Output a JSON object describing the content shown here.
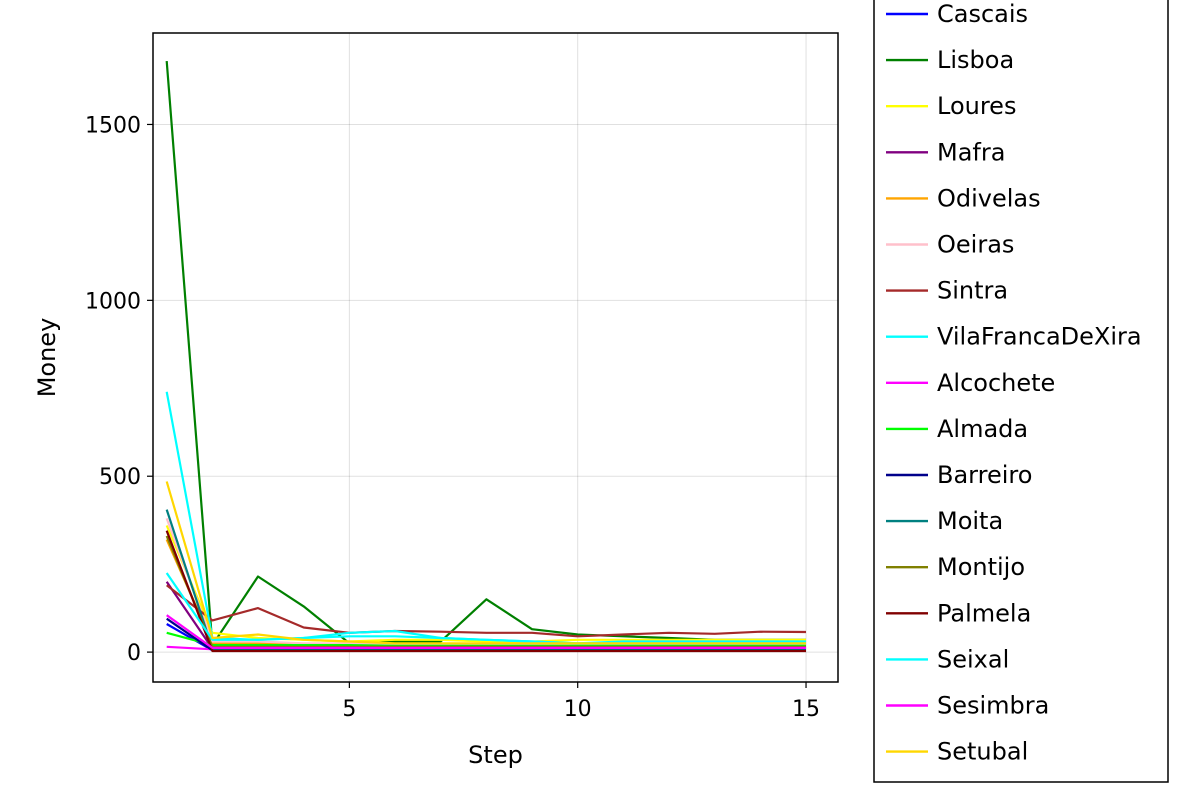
{
  "chart_data": {
    "type": "line",
    "xlabel": "Step",
    "ylabel": "Money",
    "xlim": [
      0.7,
      15.7
    ],
    "ylim": [
      -85,
      1760
    ],
    "xticks": [
      5,
      10,
      15
    ],
    "yticks": [
      0,
      500,
      1000,
      1500
    ],
    "grid": true,
    "legend_position": "right",
    "x": [
      1,
      2,
      3,
      4,
      5,
      6,
      7,
      8,
      9,
      10,
      11,
      12,
      13,
      14,
      15
    ],
    "series": [
      {
        "name": "Cascais",
        "color": "#0000ff",
        "values": [
          80,
          5,
          8,
          10,
          12,
          10,
          8,
          8,
          8,
          6,
          8,
          8,
          8,
          8,
          8
        ]
      },
      {
        "name": "Lisboa",
        "color": "#008000",
        "values": [
          1680,
          20,
          215,
          130,
          25,
          30,
          30,
          150,
          65,
          50,
          45,
          40,
          35,
          35,
          35
        ]
      },
      {
        "name": "Loures",
        "color": "#ffff00",
        "values": [
          360,
          55,
          40,
          35,
          30,
          35,
          35,
          30,
          30,
          35,
          35,
          35,
          35,
          35,
          35
        ]
      },
      {
        "name": "Mafra",
        "color": "#800080",
        "values": [
          200,
          10,
          10,
          12,
          15,
          12,
          10,
          10,
          10,
          8,
          8,
          8,
          8,
          8,
          8
        ]
      },
      {
        "name": "Odivelas",
        "color": "#ffa500",
        "values": [
          320,
          25,
          25,
          20,
          18,
          20,
          18,
          18,
          18,
          20,
          20,
          20,
          20,
          20,
          20
        ]
      },
      {
        "name": "Oeiras",
        "color": "#ffc0cb",
        "values": [
          380,
          30,
          30,
          25,
          25,
          22,
          22,
          22,
          22,
          22,
          22,
          22,
          22,
          22,
          22
        ]
      },
      {
        "name": "Sintra",
        "color": "#a52a2a",
        "values": [
          190,
          90,
          125,
          70,
          55,
          60,
          58,
          55,
          55,
          45,
          50,
          55,
          52,
          58,
          57
        ]
      },
      {
        "name": "VilaFrancaDeXira",
        "color": "#00ffff",
        "values": [
          740,
          40,
          35,
          40,
          55,
          60,
          40,
          35,
          30,
          25,
          30,
          30,
          30,
          30,
          30
        ]
      },
      {
        "name": "Alcochete",
        "color": "#ff00ff",
        "values": [
          15,
          8,
          8,
          8,
          8,
          8,
          8,
          8,
          8,
          8,
          8,
          8,
          8,
          8,
          8
        ]
      },
      {
        "name": "Almada",
        "color": "#00ff00",
        "values": [
          55,
          20,
          20,
          20,
          20,
          18,
          18,
          18,
          18,
          18,
          18,
          18,
          18,
          18,
          18
        ]
      },
      {
        "name": "Barreiro",
        "color": "#00008b",
        "values": [
          95,
          5,
          5,
          5,
          5,
          5,
          5,
          5,
          5,
          5,
          5,
          5,
          5,
          5,
          5
        ]
      },
      {
        "name": "Moita",
        "color": "#008080",
        "values": [
          405,
          10,
          10,
          10,
          10,
          10,
          10,
          10,
          10,
          10,
          10,
          10,
          10,
          10,
          10
        ]
      },
      {
        "name": "Montijo",
        "color": "#808000",
        "values": [
          330,
          15,
          15,
          15,
          15,
          15,
          15,
          15,
          15,
          15,
          15,
          15,
          15,
          15,
          15
        ]
      },
      {
        "name": "Palmela",
        "color": "#800000",
        "values": [
          345,
          3,
          3,
          3,
          3,
          3,
          3,
          3,
          3,
          3,
          3,
          3,
          3,
          3,
          3
        ]
      },
      {
        "name": "Seixal",
        "color": "#00ffff",
        "values": [
          225,
          35,
          35,
          40,
          45,
          45,
          40,
          35,
          30,
          25,
          25,
          25,
          25,
          25,
          25
        ]
      },
      {
        "name": "Sesimbra",
        "color": "#ff00ff",
        "values": [
          105,
          12,
          12,
          12,
          12,
          12,
          12,
          12,
          12,
          12,
          12,
          12,
          12,
          12,
          12
        ]
      },
      {
        "name": "Setubal",
        "color": "#ffd700",
        "values": [
          485,
          40,
          50,
          35,
          30,
          25,
          25,
          25,
          25,
          25,
          25,
          25,
          25,
          25,
          25
        ]
      }
    ]
  }
}
